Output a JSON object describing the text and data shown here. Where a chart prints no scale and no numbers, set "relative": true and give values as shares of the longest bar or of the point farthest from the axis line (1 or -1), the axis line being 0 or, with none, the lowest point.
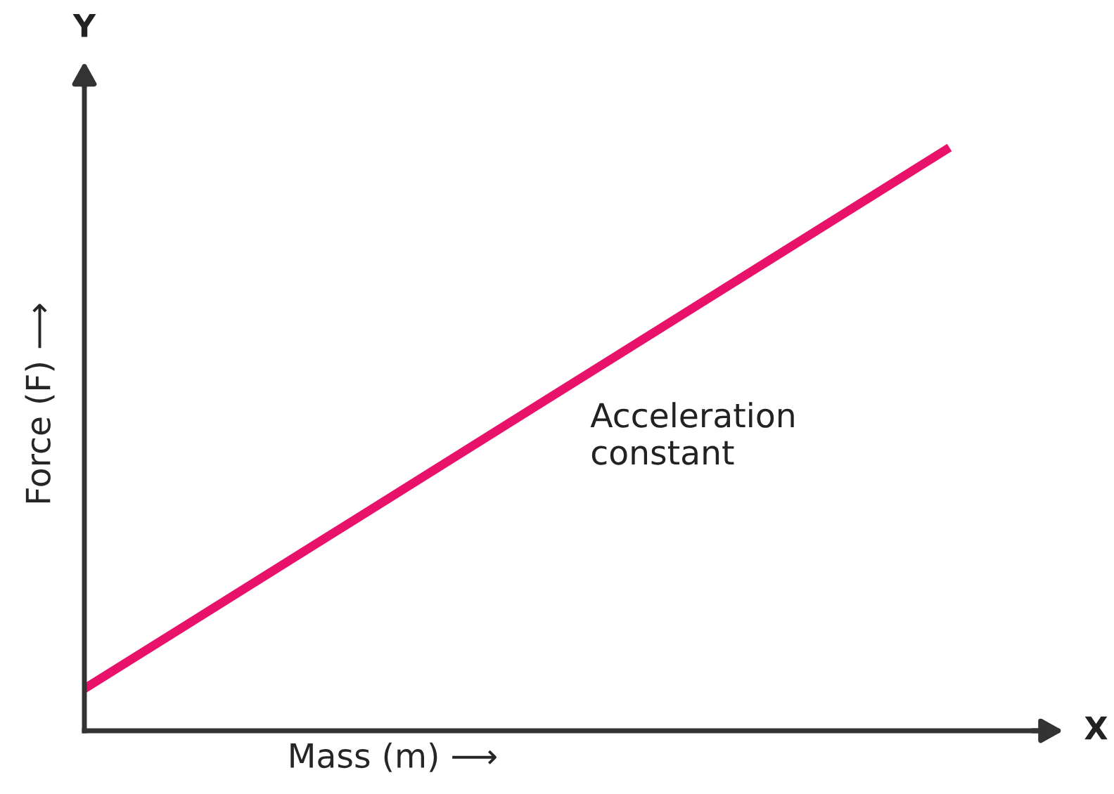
{
  "chart_data": {
    "type": "line",
    "relative": true,
    "xlabel": "Mass (m) ⟶",
    "ylabel": "Force (F) ⟶",
    "categories": [
      null,
      null
    ],
    "series": [
      {
        "color": "#e8126b",
        "values": [
          0.072,
          1
        ]
      }
    ],
    "annotations": [
      "Y",
      "X",
      "Acceleration\nconstant"
    ],
    "legend": false,
    "marker": "none",
    "line_style": "solid"
  }
}
